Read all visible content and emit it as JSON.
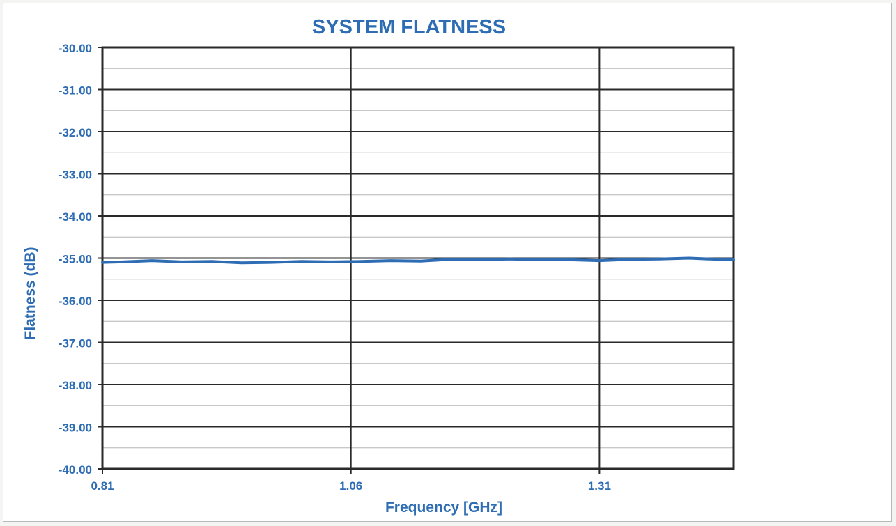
{
  "chart_data": {
    "type": "line",
    "title": "SYSTEM FLATNESS",
    "xlabel": "Frequency [GHz]",
    "ylabel": "Flatness (dB)",
    "xlim": [
      0.81,
      1.445
    ],
    "ylim": [
      -40.0,
      -30.0
    ],
    "x_ticks": [
      "0.81",
      "1.06",
      "1.31"
    ],
    "x_tick_values": [
      0.81,
      1.06,
      1.31
    ],
    "y_ticks": [
      "-30.00",
      "-31.00",
      "-32.00",
      "-33.00",
      "-34.00",
      "-35.00",
      "-36.00",
      "-37.00",
      "-38.00",
      "-39.00",
      "-40.00"
    ],
    "y_tick_values": [
      -30,
      -31,
      -32,
      -33,
      -34,
      -35,
      -36,
      -37,
      -38,
      -39,
      -40
    ],
    "grid": {
      "major": true,
      "minor_y": true
    },
    "legend": "none",
    "series": [
      {
        "color": "#2e6db4",
        "x": [
          0.81,
          0.83,
          0.86,
          0.89,
          0.92,
          0.95,
          0.98,
          1.01,
          1.04,
          1.07,
          1.1,
          1.13,
          1.16,
          1.19,
          1.22,
          1.25,
          1.28,
          1.31,
          1.34,
          1.37,
          1.4,
          1.43,
          1.445
        ],
        "y": [
          -35.1,
          -35.09,
          -35.06,
          -35.09,
          -35.08,
          -35.11,
          -35.1,
          -35.08,
          -35.09,
          -35.08,
          -35.06,
          -35.07,
          -35.03,
          -35.04,
          -35.02,
          -35.04,
          -35.04,
          -35.06,
          -35.03,
          -35.02,
          -35.0,
          -35.03,
          -35.04
        ]
      }
    ]
  },
  "colors": {
    "text": "#2e6db4",
    "grid_major": "#2a2a2a",
    "grid_minor": "#b5b5b5"
  }
}
